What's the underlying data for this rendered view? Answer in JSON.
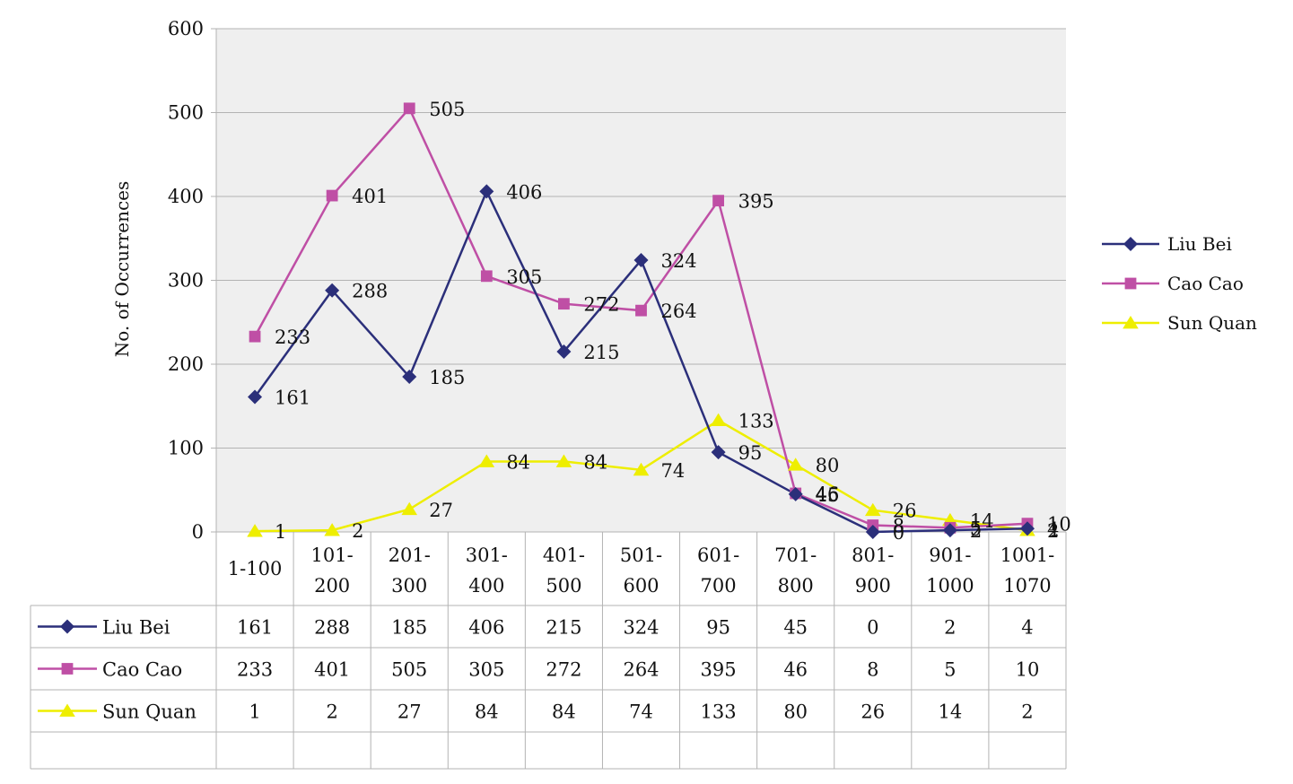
{
  "chart_data": {
    "type": "line",
    "title": "",
    "xlabel": "",
    "ylabel": "No. of Occurrences",
    "ylim": [
      0,
      600
    ],
    "yticks": [
      0,
      100,
      200,
      300,
      400,
      500,
      600
    ],
    "grid": true,
    "legend_position": "right",
    "data_table": true,
    "categories": [
      [
        "1-100"
      ],
      [
        "101-",
        "200"
      ],
      [
        "201-",
        "300"
      ],
      [
        "301-",
        "400"
      ],
      [
        "401-",
        "500"
      ],
      [
        "501-",
        "600"
      ],
      [
        "601-",
        "700"
      ],
      [
        "701-",
        "800"
      ],
      [
        "801-",
        "900"
      ],
      [
        "901-",
        "1000"
      ],
      [
        "1001-",
        "1070"
      ]
    ],
    "series": [
      {
        "name": "Liu Bei",
        "marker": "diamond",
        "color": "#2b2f7a",
        "values": [
          161,
          288,
          185,
          406,
          215,
          324,
          95,
          45,
          0,
          2,
          4
        ]
      },
      {
        "name": "Cao Cao",
        "marker": "square",
        "color": "#bf4fa5",
        "values": [
          233,
          401,
          505,
          305,
          272,
          264,
          395,
          46,
          8,
          5,
          10
        ]
      },
      {
        "name": "Sun Quan",
        "marker": "triangle",
        "color": "#eeee00",
        "values": [
          1,
          2,
          27,
          84,
          84,
          74,
          133,
          80,
          26,
          14,
          2
        ]
      }
    ]
  }
}
